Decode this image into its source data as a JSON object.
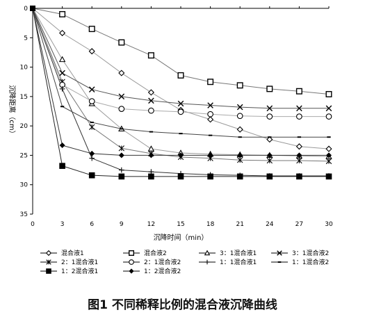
{
  "caption": "图1 不同稀释比例的混合液沉降曲线",
  "chart_data": {
    "type": "line",
    "title": "",
    "xlabel": "沉降时间（min）",
    "ylabel": "沉降距离（cm）",
    "xlim": [
      0,
      30
    ],
    "ylim": [
      0,
      35
    ],
    "y_inverted": true,
    "grid": false,
    "legend_position": "bottom",
    "xticks": [
      "0",
      "3",
      "6",
      "9",
      "12",
      "15",
      "18",
      "21",
      "24",
      "27",
      "30"
    ],
    "yticks": [
      "0",
      "5",
      "10",
      "15",
      "20",
      "25",
      "30",
      "35"
    ],
    "x": [
      0,
      3,
      6,
      9,
      12,
      15,
      18,
      21,
      24,
      27,
      30
    ],
    "series": [
      {
        "name": "混合液1",
        "marker": "diamond-open",
        "line": "#9a9a9a",
        "values": [
          0,
          4.2,
          7.3,
          11.0,
          14.3,
          17.3,
          18.9,
          20.6,
          22.3,
          23.5,
          23.9
        ]
      },
      {
        "name": "混合液2",
        "marker": "square-open",
        "line": "#777777",
        "values": [
          0,
          1.0,
          3.5,
          5.8,
          8.0,
          11.4,
          12.5,
          13.1,
          13.7,
          14.1,
          14.6
        ]
      },
      {
        "name": "3：1混合液1",
        "marker": "triangle-open",
        "line": "#9a9a9a",
        "values": [
          0,
          8.7,
          16.2,
          20.5,
          23.9,
          24.6,
          24.8,
          24.9,
          25.0,
          25.1,
          25.2
        ]
      },
      {
        "name": "3：1混合液2",
        "marker": "x",
        "line": "#555555",
        "values": [
          0,
          11.0,
          13.8,
          15.0,
          15.7,
          16.2,
          16.5,
          16.8,
          17.0,
          17.0,
          17.0
        ]
      },
      {
        "name": "2：1混合液1",
        "marker": "asterisk",
        "line": "#777777",
        "values": [
          0,
          12.5,
          20.2,
          23.8,
          24.7,
          25.3,
          25.5,
          25.8,
          25.9,
          25.9,
          26.0
        ]
      },
      {
        "name": "2：1混合液2",
        "marker": "circle-open",
        "line": "#aaaaaa",
        "values": [
          0,
          13.0,
          15.8,
          17.1,
          17.4,
          17.6,
          18.0,
          18.3,
          18.4,
          18.4,
          18.4
        ]
      },
      {
        "name": "1：1混合液1",
        "marker": "plus",
        "line": "#333333",
        "values": [
          0,
          13.7,
          25.5,
          27.5,
          27.8,
          28.1,
          28.3,
          28.4,
          28.5,
          28.5,
          28.5
        ]
      },
      {
        "name": "1：1混合液2",
        "marker": "dash",
        "line": "#444444",
        "values": [
          0,
          16.7,
          19.4,
          20.5,
          21.0,
          21.3,
          21.6,
          21.9,
          21.9,
          21.9,
          21.9
        ]
      },
      {
        "name": "1：2混合液1",
        "marker": "square-filled",
        "line": "#222222",
        "values": [
          0,
          26.8,
          28.4,
          28.6,
          28.6,
          28.6,
          28.6,
          28.6,
          28.6,
          28.6,
          28.6
        ]
      },
      {
        "name": "1：2混合液2",
        "marker": "diamond-filled",
        "line": "#333333",
        "values": [
          0,
          23.3,
          24.7,
          25.0,
          25.0,
          25.0,
          25.0,
          25.0,
          25.0,
          25.0,
          25.0
        ]
      }
    ]
  }
}
